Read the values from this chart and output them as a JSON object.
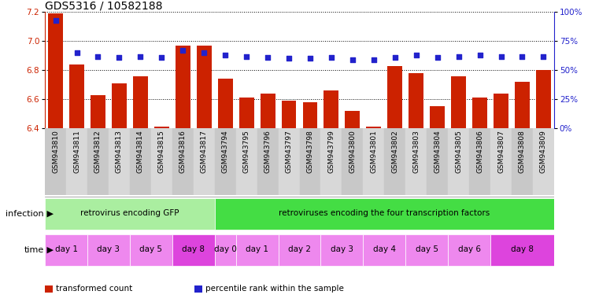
{
  "title": "GDS5316 / 10582188",
  "samples": [
    "GSM943810",
    "GSM943811",
    "GSM943812",
    "GSM943813",
    "GSM943814",
    "GSM943815",
    "GSM943816",
    "GSM943817",
    "GSM943794",
    "GSM943795",
    "GSM943796",
    "GSM943797",
    "GSM943798",
    "GSM943799",
    "GSM943800",
    "GSM943801",
    "GSM943802",
    "GSM943803",
    "GSM943804",
    "GSM943805",
    "GSM943806",
    "GSM943807",
    "GSM943808",
    "GSM943809"
  ],
  "bar_values": [
    7.19,
    6.84,
    6.63,
    6.71,
    6.76,
    6.41,
    6.97,
    6.97,
    6.74,
    6.61,
    6.64,
    6.59,
    6.58,
    6.66,
    6.52,
    6.41,
    6.83,
    6.78,
    6.55,
    6.76,
    6.61,
    6.64,
    6.72,
    6.8
  ],
  "percentile_values": [
    93,
    65,
    62,
    61,
    62,
    61,
    67,
    65,
    63,
    62,
    61,
    60,
    60,
    61,
    59,
    59,
    61,
    63,
    61,
    62,
    63,
    62,
    62,
    62
  ],
  "ylim_left": [
    6.4,
    7.2
  ],
  "ylim_right": [
    0,
    100
  ],
  "yticks_left": [
    6.4,
    6.6,
    6.8,
    7.0,
    7.2
  ],
  "yticks_right": [
    0,
    25,
    50,
    75,
    100
  ],
  "ytick_labels_right": [
    "0%",
    "25%",
    "50%",
    "75%",
    "100%"
  ],
  "bar_color": "#cc2200",
  "dot_color": "#2222cc",
  "infection_groups": [
    {
      "label": "retrovirus encoding GFP",
      "start": 0,
      "end": 7,
      "color": "#aaeea0"
    },
    {
      "label": "retroviruses encoding the four transcription factors",
      "start": 8,
      "end": 23,
      "color": "#44dd44"
    }
  ],
  "time_groups": [
    {
      "label": "day 1",
      "start": 0,
      "end": 1,
      "color": "#ee88ee"
    },
    {
      "label": "day 3",
      "start": 2,
      "end": 3,
      "color": "#ee88ee"
    },
    {
      "label": "day 5",
      "start": 4,
      "end": 5,
      "color": "#ee88ee"
    },
    {
      "label": "day 8",
      "start": 6,
      "end": 7,
      "color": "#dd44dd"
    },
    {
      "label": "day 0",
      "start": 8,
      "end": 8,
      "color": "#ee88ee"
    },
    {
      "label": "day 1",
      "start": 9,
      "end": 10,
      "color": "#ee88ee"
    },
    {
      "label": "day 2",
      "start": 11,
      "end": 12,
      "color": "#ee88ee"
    },
    {
      "label": "day 3",
      "start": 13,
      "end": 14,
      "color": "#ee88ee"
    },
    {
      "label": "day 4",
      "start": 15,
      "end": 16,
      "color": "#ee88ee"
    },
    {
      "label": "day 5",
      "start": 17,
      "end": 18,
      "color": "#ee88ee"
    },
    {
      "label": "day 6",
      "start": 19,
      "end": 20,
      "color": "#ee88ee"
    },
    {
      "label": "day 8",
      "start": 21,
      "end": 23,
      "color": "#dd44dd"
    }
  ],
  "infection_label": "infection",
  "time_label": "time",
  "legend_items": [
    {
      "color": "#cc2200",
      "label": "transformed count"
    },
    {
      "color": "#2222cc",
      "label": "percentile rank within the sample"
    }
  ],
  "bg_color": "#ffffff",
  "title_fontsize": 10,
  "tick_fontsize": 7.5,
  "label_fontsize": 8,
  "bar_width": 0.7
}
